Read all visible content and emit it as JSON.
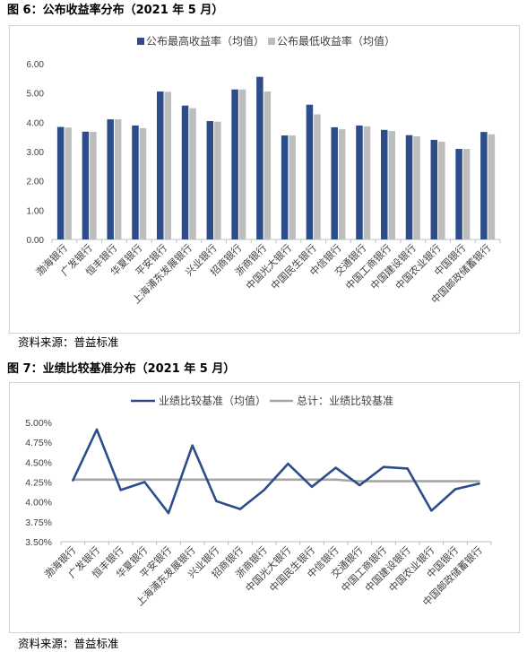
{
  "figures": [
    {
      "caption": "图 6：公布收益率分布（2021 年 5 月）",
      "source": "资料来源：普益标准"
    },
    {
      "caption": "图 7：业绩比较基准分布（2021 年 5 月）",
      "source": "资料来源：普益标准"
    }
  ],
  "chart_data": [
    {
      "type": "bar",
      "categories": [
        "渤海银行",
        "广发银行",
        "恒丰银行",
        "华夏银行",
        "平安银行",
        "上海浦东发展银行",
        "兴业银行",
        "招商银行",
        "浙商银行",
        "中国光大银行",
        "中国民生银行",
        "中信银行",
        "交通银行",
        "中国工商银行",
        "中国建设银行",
        "中国农业银行",
        "中国银行",
        "中国邮政储蓄银行"
      ],
      "series": [
        {
          "name": "公布最高收益率（均值）",
          "color": "#2d4d8a",
          "values": [
            3.84,
            3.68,
            4.1,
            3.89,
            5.05,
            4.57,
            4.04,
            5.12,
            5.55,
            3.55,
            4.6,
            3.83,
            3.89,
            3.74,
            3.56,
            3.4,
            3.09,
            3.67
          ]
        },
        {
          "name": "公布最低收益率（均值）",
          "color": "#bdbdbd",
          "values": [
            3.82,
            3.67,
            4.1,
            3.8,
            5.04,
            4.48,
            4.02,
            5.12,
            5.05,
            3.55,
            4.27,
            3.76,
            3.86,
            3.7,
            3.52,
            3.34,
            3.09,
            3.59
          ]
        }
      ],
      "ylim": [
        0,
        6
      ],
      "yticks": [
        0,
        1,
        2,
        3,
        4,
        5,
        6
      ],
      "ytick_labels": [
        "0.00",
        "1.00",
        "2.00",
        "3.00",
        "4.00",
        "5.00",
        "6.00"
      ],
      "legend": "top-center",
      "grid": false
    },
    {
      "type": "line",
      "categories": [
        "渤海银行",
        "广发银行",
        "恒丰银行",
        "华夏银行",
        "平安银行",
        "上海浦东发展银行",
        "兴业银行",
        "招商银行",
        "浙商银行",
        "中国光大银行",
        "中国民生银行",
        "中信银行",
        "交通银行",
        "中国工商银行",
        "中国建设银行",
        "中国农业银行",
        "中国银行",
        "中国邮政储蓄银行"
      ],
      "series": [
        {
          "name": "业绩比较基准（均值）",
          "color": "#2d4d8a",
          "values": [
            4.27,
            4.91,
            4.15,
            4.25,
            3.86,
            4.71,
            4.01,
            3.91,
            4.15,
            4.48,
            4.19,
            4.43,
            4.21,
            4.44,
            4.42,
            3.89,
            4.16,
            4.23
          ]
        },
        {
          "name": "总计：业绩比较基准",
          "color": "#a6a6a6",
          "values": [
            4.28,
            4.28,
            4.28,
            4.28,
            4.28,
            4.28,
            4.28,
            4.28,
            4.28,
            4.28,
            4.28,
            4.28,
            4.26,
            4.26,
            4.26,
            4.26,
            4.26,
            4.26
          ]
        }
      ],
      "ylim": [
        3.5,
        5.0
      ],
      "yticks": [
        3.5,
        3.75,
        4.0,
        4.25,
        4.5,
        4.75,
        5.0
      ],
      "ytick_labels": [
        "3.50%",
        "3.75%",
        "4.00%",
        "4.25%",
        "4.50%",
        "4.75%",
        "5.00%"
      ],
      "legend": "top-center",
      "grid": false
    }
  ]
}
